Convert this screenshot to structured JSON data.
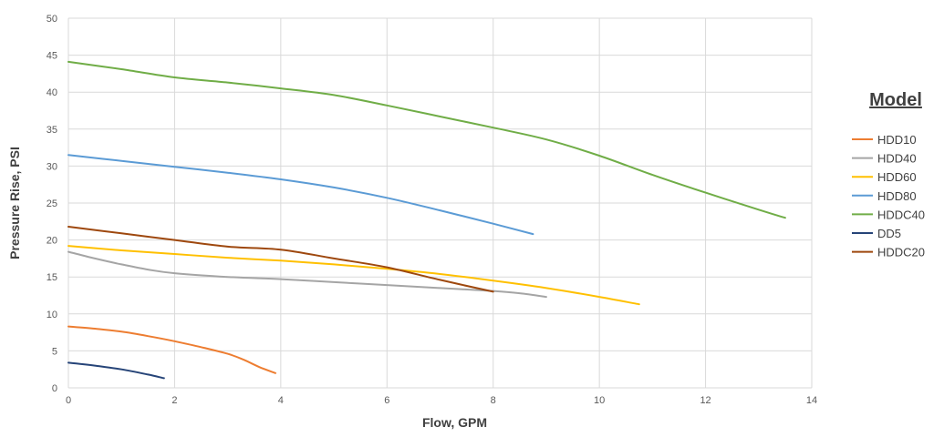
{
  "chart_data": {
    "type": "line",
    "xlabel": "Flow, GPM",
    "ylabel": "Pressure Rise, PSI",
    "xlim": [
      0,
      14
    ],
    "ylim": [
      0,
      50
    ],
    "xticks": [
      "0",
      "2",
      "4",
      "6",
      "8",
      "10",
      "12",
      "14"
    ],
    "yticks": [
      "0",
      "5",
      "10",
      "15",
      "20",
      "25",
      "30",
      "35",
      "40",
      "45",
      "50"
    ],
    "grid": true,
    "legend_title": "Model",
    "legend_position": "right",
    "series": [
      {
        "name": "HDD10",
        "color": "#ED7D31",
        "x": [
          0,
          0.5,
          1,
          1.5,
          2,
          2.5,
          3,
          3.3,
          3.6,
          3.9
        ],
        "y": [
          8.3,
          8.0,
          7.6,
          7.0,
          6.3,
          5.5,
          4.6,
          3.8,
          2.8,
          2.0
        ]
      },
      {
        "name": "HDD40",
        "color": "#A5A5A5",
        "x": [
          0,
          0.5,
          1,
          1.5,
          2,
          3,
          4,
          5,
          6,
          7,
          8,
          8.5,
          9
        ],
        "y": [
          18.4,
          17.5,
          16.7,
          16.0,
          15.5,
          15.0,
          14.7,
          14.3,
          13.9,
          13.5,
          13.1,
          12.8,
          12.3
        ]
      },
      {
        "name": "HDD60",
        "color": "#FFC000",
        "x": [
          0,
          1,
          2,
          3,
          4,
          5,
          6,
          7,
          8,
          9,
          10,
          10.75
        ],
        "y": [
          19.2,
          18.6,
          18.1,
          17.6,
          17.2,
          16.7,
          16.1,
          15.4,
          14.5,
          13.5,
          12.3,
          11.3
        ]
      },
      {
        "name": "HDD80",
        "color": "#5B9BD5",
        "x": [
          0,
          1,
          2,
          3,
          4,
          5,
          6,
          7,
          8,
          8.75
        ],
        "y": [
          31.5,
          30.7,
          29.9,
          29.1,
          28.2,
          27.1,
          25.7,
          24.0,
          22.2,
          20.8
        ]
      },
      {
        "name": "HDDC40",
        "color": "#70AD47",
        "x": [
          0,
          1,
          2,
          3,
          4,
          5,
          6,
          7,
          8,
          9,
          10,
          11,
          12,
          13,
          13.5
        ],
        "y": [
          44.1,
          43.1,
          42.0,
          41.3,
          40.5,
          39.6,
          38.2,
          36.7,
          35.2,
          33.6,
          31.4,
          28.8,
          26.4,
          24.1,
          23.0
        ]
      },
      {
        "name": "DD5",
        "color": "#264478",
        "x": [
          0,
          0.5,
          1,
          1.5,
          1.8
        ],
        "y": [
          3.4,
          3.0,
          2.5,
          1.8,
          1.3
        ]
      },
      {
        "name": "HDDC20",
        "color": "#9E480E",
        "x": [
          0,
          1,
          2,
          3,
          4,
          5,
          6,
          7,
          8
        ],
        "y": [
          21.8,
          20.9,
          20.0,
          19.1,
          18.7,
          17.5,
          16.3,
          14.6,
          13.0
        ]
      }
    ]
  }
}
